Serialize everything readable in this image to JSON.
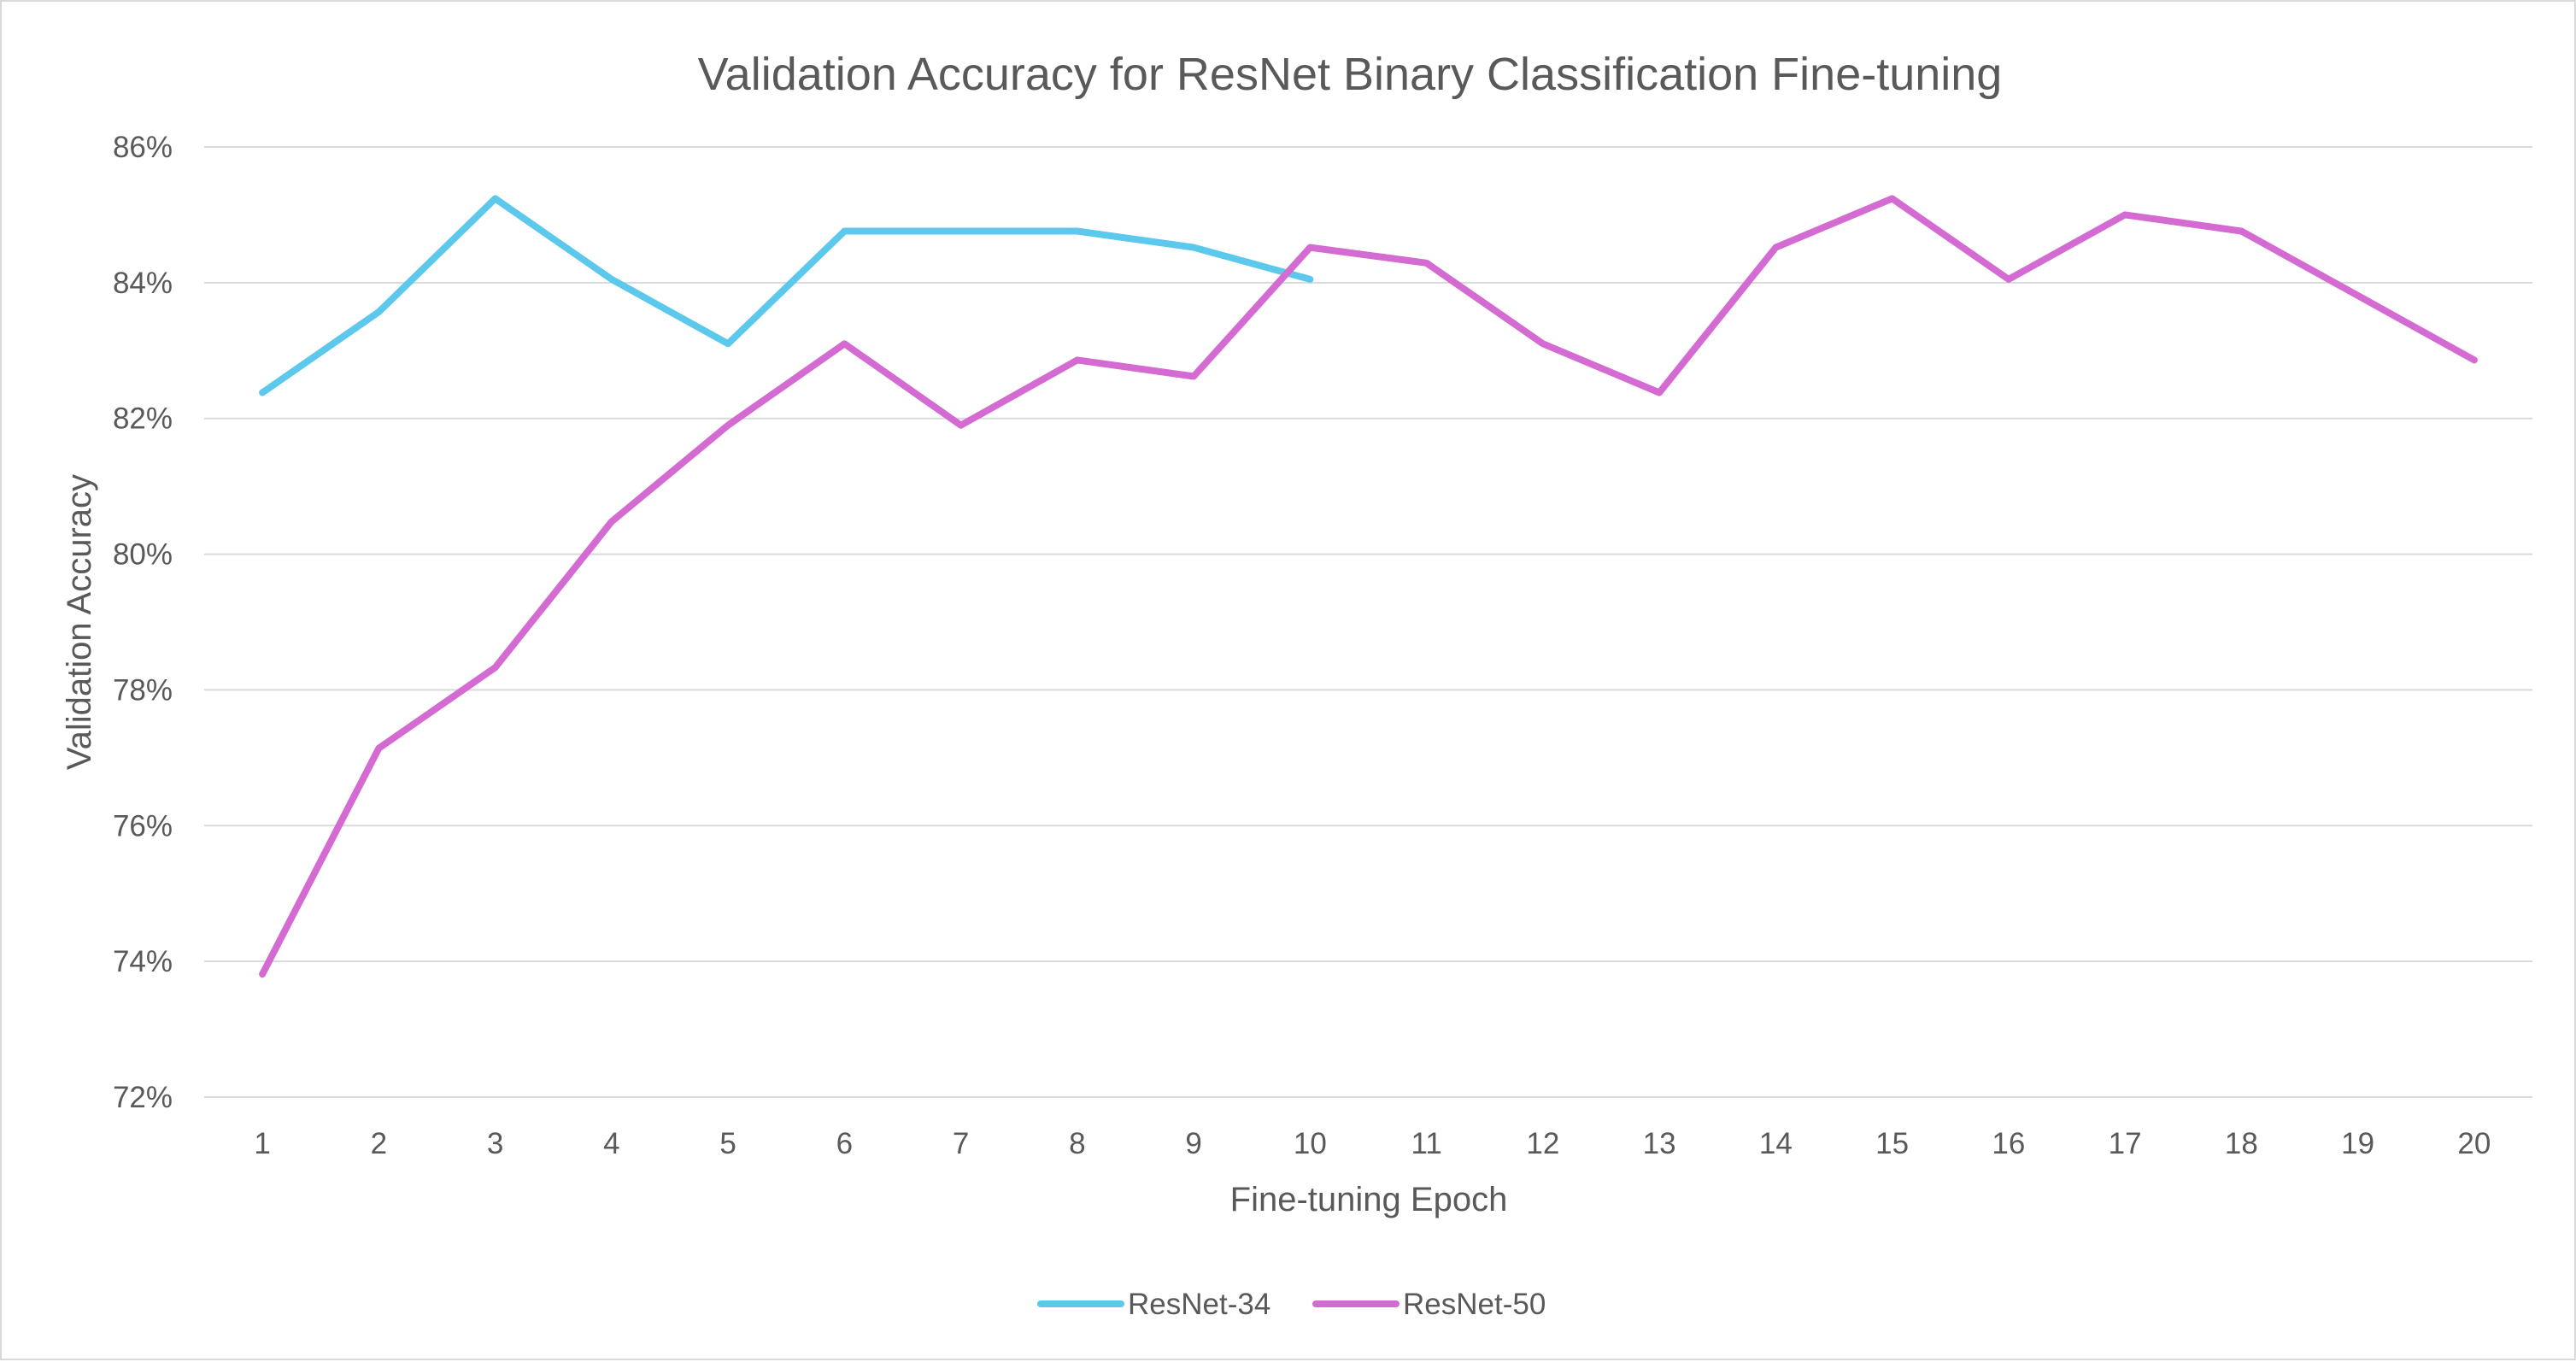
{
  "chart_data": {
    "type": "line",
    "title": "Validation Accuracy for ResNet Binary Classification Fine-tuning",
    "xlabel": "Fine-tuning Epoch",
    "ylabel": "Validation Accuracy",
    "categories": [
      "1",
      "2",
      "3",
      "4",
      "5",
      "6",
      "7",
      "8",
      "9",
      "10",
      "11",
      "12",
      "13",
      "14",
      "15",
      "16",
      "17",
      "18",
      "19",
      "20"
    ],
    "y_ticks": [
      "72%",
      "74%",
      "76%",
      "78%",
      "80%",
      "82%",
      "84%",
      "86%"
    ],
    "ylim": [
      72,
      86
    ],
    "grid": true,
    "legend_position": "bottom",
    "series": [
      {
        "name": "ResNet-34",
        "color": "#5bc8ec",
        "values": [
          82.38,
          83.57,
          85.24,
          84.05,
          83.1,
          84.76,
          84.76,
          84.76,
          84.52,
          84.05,
          null,
          null,
          null,
          null,
          null,
          null,
          null,
          null,
          null,
          null
        ]
      },
      {
        "name": "ResNet-50",
        "color": "#d46bd3",
        "values": [
          73.81,
          77.14,
          78.33,
          80.48,
          81.9,
          83.1,
          81.9,
          82.86,
          82.62,
          84.52,
          84.29,
          83.1,
          82.38,
          84.52,
          85.24,
          84.05,
          85.0,
          84.76,
          83.81,
          82.86
        ]
      }
    ]
  }
}
